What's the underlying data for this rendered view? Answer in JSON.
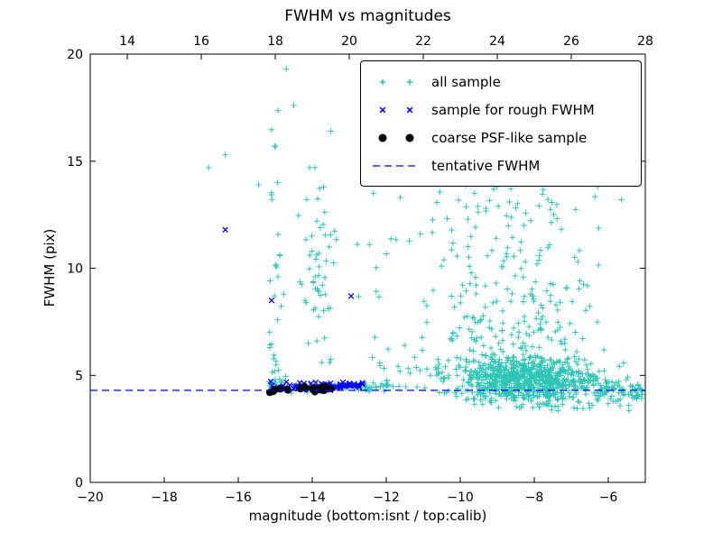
{
  "colors": {
    "all_sample": "#2ec4b6",
    "rough": "#0000ff",
    "psf": "#000000",
    "line": "#0000ff",
    "axis": "#000000",
    "background": "#ffffff"
  },
  "chart_data": {
    "type": "scatter",
    "title": "FWHM vs magnitudes",
    "xlabel": "magnitude (bottom:isnt / top:calib)",
    "ylabel": "FWHM (pix)",
    "xlim": [
      -20,
      -5
    ],
    "ylim": [
      0,
      20
    ],
    "x_ticks": [
      -20,
      -18,
      -16,
      -14,
      -12,
      -10,
      -8,
      -6
    ],
    "y_ticks": [
      0,
      5,
      10,
      15,
      20
    ],
    "top_axis": {
      "offset": 33,
      "ticks": [
        14,
        16,
        18,
        20,
        22,
        24,
        26,
        28
      ]
    },
    "grid": false,
    "legend_position": "upper right",
    "tentative_fwhm": 4.3,
    "line_label": "tentative FWHM",
    "series": [
      {
        "name": "all sample",
        "marker": "plus",
        "color_key": "all_sample",
        "seed": 42,
        "clusters": [
          {
            "n": 700,
            "x": {
              "type": "normal",
              "mean": -8.3,
              "sd": 1.0,
              "min": -10.6,
              "max": -5.1
            },
            "y": {
              "type": "normal",
              "mean": 4.75,
              "sd": 0.5,
              "min": 3.5,
              "max": 6.6
            }
          },
          {
            "n": 260,
            "x": {
              "type": "normal",
              "mean": -8.6,
              "sd": 1.1,
              "min": -10.9,
              "max": -5.2
            },
            "y": {
              "type": "pow",
              "min": 5.0,
              "max": 15.0,
              "p": 2.6
            }
          },
          {
            "n": 70,
            "x": {
              "type": "uniform",
              "min": -10.6,
              "max": -6.2
            },
            "y": {
              "type": "pow",
              "min": 6.5,
              "max": 15.4,
              "p": 1.6
            }
          },
          {
            "n": 42,
            "x": {
              "type": "normal",
              "mean": -15.0,
              "sd": 0.12,
              "min": -15.3,
              "max": -14.7
            },
            "y": {
              "type": "pow",
              "min": 4.6,
              "max": 19.4,
              "p": 2.2
            }
          },
          {
            "n": 55,
            "x": {
              "type": "normal",
              "mean": -13.85,
              "sd": 0.26,
              "min": -14.45,
              "max": -13.3
            },
            "y": {
              "type": "normal",
              "mean": 10.2,
              "sd": 2.2,
              "min": 5.6,
              "max": 14.7
            }
          },
          {
            "n": 60,
            "x": {
              "type": "uniform",
              "min": -15.2,
              "max": -11.9
            },
            "y": {
              "type": "normal",
              "mean": 4.45,
              "sd": 0.12,
              "min": 4.1,
              "max": 4.9
            }
          },
          {
            "n": 45,
            "x": {
              "type": "uniform",
              "min": -12.9,
              "max": -10.4
            },
            "y": {
              "type": "pow",
              "min": 4.4,
              "max": 14.2,
              "p": 2.4
            }
          },
          {
            "n": 70,
            "x": {
              "type": "uniform",
              "min": -6.3,
              "max": -5.05
            },
            "y": {
              "type": "normal",
              "mean": 4.25,
              "sd": 0.3,
              "min": 3.6,
              "max": 5.2
            }
          },
          {
            "n": 45,
            "x": {
              "type": "normal",
              "mean": -7.2,
              "sd": 0.8,
              "min": -8.9,
              "max": -5.2
            },
            "y": {
              "type": "normal",
              "mean": 3.85,
              "sd": 0.3,
              "min": 3.2,
              "max": 4.4
            }
          }
        ],
        "points": [
          [
            -16.8,
            14.7
          ],
          [
            -16.35,
            15.3
          ],
          [
            -15.45,
            13.9
          ],
          [
            -14.7,
            19.3
          ],
          [
            -14.5,
            17.6
          ],
          [
            -13.5,
            16.4
          ],
          [
            -12.35,
            13.5
          ],
          [
            -11.0,
            14.3
          ],
          [
            -9.4,
            15.2
          ],
          [
            -5.65,
            13.2
          ]
        ]
      },
      {
        "name": "sample for rough FWHM",
        "marker": "x",
        "color_key": "rough",
        "seed": 7,
        "clusters": [
          {
            "n": 70,
            "x": {
              "type": "uniform",
              "min": -15.15,
              "max": -12.55
            },
            "y": {
              "type": "normal",
              "mean": 4.5,
              "sd": 0.09,
              "min": 4.25,
              "max": 4.8
            }
          }
        ],
        "points": [
          [
            -16.35,
            11.8
          ],
          [
            -15.1,
            8.5
          ],
          [
            -12.95,
            8.7
          ]
        ]
      },
      {
        "name": "coarse PSF-like sample",
        "marker": "dot",
        "color_key": "psf",
        "seed": 3,
        "clusters": [
          {
            "n": 26,
            "x": {
              "type": "uniform",
              "min": -15.15,
              "max": -13.45
            },
            "y": {
              "type": "normal",
              "mean": 4.38,
              "sd": 0.06,
              "min": 4.2,
              "max": 4.55
            }
          }
        ],
        "points": []
      }
    ]
  },
  "legend": {
    "items": [
      {
        "label": "all sample",
        "marker": "plus",
        "color_key": "all_sample"
      },
      {
        "label": "sample for rough FWHM",
        "marker": "x",
        "color_key": "rough"
      },
      {
        "label": "coarse PSF-like sample",
        "marker": "dot",
        "color_key": "psf"
      },
      {
        "label": "tentative FWHM",
        "marker": "dash",
        "color_key": "line"
      }
    ]
  }
}
